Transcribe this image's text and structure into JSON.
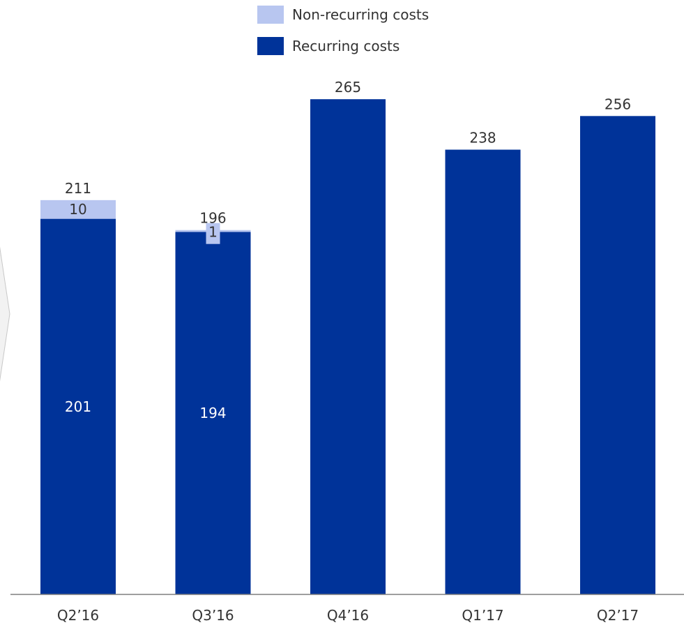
{
  "chart_data": {
    "type": "bar",
    "stacked": true,
    "categories": [
      "Q2’16",
      "Q3’16",
      "Q4’16",
      "Q1’17",
      "Q2’17"
    ],
    "series": [
      {
        "name": "Recurring costs",
        "values": [
          201,
          194,
          265,
          238,
          256
        ],
        "color": "#003399",
        "show_labels": [
          true,
          true,
          false,
          false,
          false
        ],
        "label_color": "#ffffff"
      },
      {
        "name": "Non-recurring costs",
        "values": [
          10,
          1,
          0,
          0,
          0
        ],
        "color": "#b8c6f0",
        "show_labels": [
          true,
          true,
          false,
          false,
          false
        ],
        "label_color": "#333333"
      }
    ],
    "totals": [
      "211",
      "196",
      "265",
      "238",
      "256"
    ],
    "legend": {
      "placement": "top",
      "items": [
        "Non-recurring costs",
        "Recurring costs"
      ]
    },
    "title": "",
    "xlabel": "",
    "ylabel": "",
    "ylim": [
      0,
      300
    ],
    "grid": false
  }
}
